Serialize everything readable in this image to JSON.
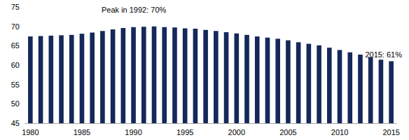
{
  "chart_data": {
    "type": "bar",
    "categories": [
      "1980",
      null,
      null,
      null,
      null,
      "1985",
      null,
      null,
      null,
      null,
      "1990",
      null,
      null,
      null,
      null,
      "1995",
      null,
      null,
      null,
      null,
      "2000",
      null,
      null,
      null,
      null,
      "2005",
      null,
      null,
      null,
      null,
      "2010",
      null,
      null,
      null,
      null,
      "2015"
    ],
    "values": [
      67.4,
      67.5,
      67.6,
      67.7,
      67.8,
      68.1,
      68.4,
      68.8,
      69.2,
      69.6,
      69.8,
      69.9,
      70.0,
      69.8,
      69.7,
      69.5,
      69.4,
      69.1,
      68.8,
      68.5,
      68.2,
      67.8,
      67.4,
      67.1,
      66.8,
      66.4,
      65.9,
      65.5,
      65.1,
      64.5,
      63.9,
      63.3,
      62.7,
      62.0,
      61.4,
      61.0
    ],
    "color": "#14285a",
    "ylim": [
      45,
      75
    ],
    "yticks": [
      45,
      50,
      55,
      60,
      65,
      70,
      75
    ],
    "grid": false,
    "annotations": [
      "Peak in 1992: 70%",
      "2015: 61%"
    ]
  }
}
